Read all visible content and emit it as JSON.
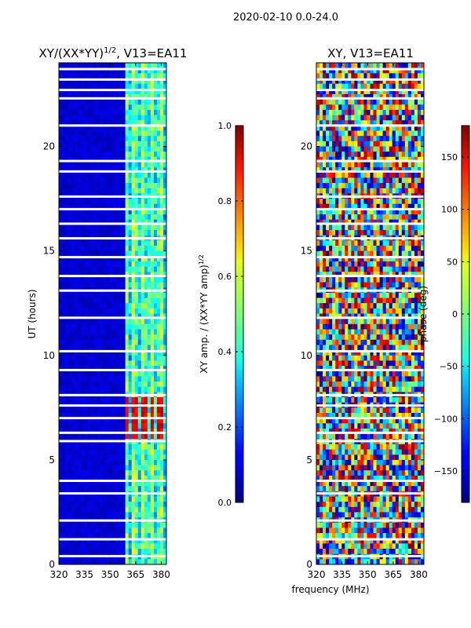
{
  "figure": {
    "suptitle": "2020-02-10 0.0-24.0",
    "xlabel": "frequency (MHz)"
  },
  "chart_data": [
    {
      "type": "heatmap",
      "title_main": "XY/(XX*YY)",
      "title_exp": "1/2",
      "title_rest": ", V13=EA11",
      "xlabel": "",
      "ylabel": "UT (hours)",
      "xticks": [
        "320",
        "335",
        "350",
        "365",
        "380"
      ],
      "xtick_values": [
        320,
        335,
        350,
        365,
        380
      ],
      "yticks": [
        "0",
        "5",
        "10",
        "15",
        "20"
      ],
      "ytick_values": [
        0,
        5,
        10,
        15,
        20
      ],
      "xlim": [
        320,
        383
      ],
      "ylim": [
        0,
        24
      ],
      "colorbar": {
        "label_main": "XY amp. / (XX*YY amp)",
        "label_exp": "1/2",
        "ticks": [
          "0.0",
          "0.2",
          "0.4",
          "0.6",
          "0.8",
          "1.0"
        ],
        "tick_values": [
          0.0,
          0.2,
          0.4,
          0.6,
          0.8,
          1.0
        ],
        "range": [
          0,
          1
        ],
        "colormap": "jet"
      },
      "flagged_hours": [
        0.4,
        1.2,
        2.1,
        3.4,
        4.0,
        5.9,
        6.3,
        7.0,
        7.6,
        8.1,
        9.3,
        10.2,
        11.8,
        13.1,
        13.8,
        14.7,
        15.6,
        16.3,
        17.0,
        17.6,
        18.8,
        19.3,
        21.0,
        22.3,
        22.7,
        23.2,
        23.7
      ]
    },
    {
      "type": "heatmap",
      "title_main": "XY, V13=EA11",
      "xlabel": "",
      "ylabel": "",
      "xticks": [
        "320",
        "335",
        "350",
        "365",
        "380"
      ],
      "xtick_values": [
        320,
        335,
        350,
        365,
        380
      ],
      "yticks": [
        "0",
        "5",
        "10",
        "15",
        "20"
      ],
      "ytick_values": [
        0,
        5,
        10,
        15,
        20
      ],
      "xlim": [
        320,
        383
      ],
      "ylim": [
        0,
        24
      ],
      "colorbar": {
        "label_main": "phase (deg)",
        "ticks": [
          "−150",
          "−100",
          "−50",
          "0",
          "50",
          "100",
          "150"
        ],
        "tick_values": [
          -150,
          -100,
          -50,
          0,
          50,
          100,
          150
        ],
        "range": [
          -180,
          180
        ],
        "colormap": "jet"
      },
      "flagged_hours": [
        0.4,
        1.2,
        2.1,
        3.4,
        4.0,
        5.9,
        6.3,
        7.0,
        7.6,
        8.1,
        9.3,
        10.2,
        11.8,
        13.1,
        13.8,
        14.7,
        15.6,
        16.3,
        17.0,
        17.6,
        18.8,
        19.3,
        21.0,
        22.3,
        22.7,
        23.2,
        23.7
      ]
    }
  ]
}
